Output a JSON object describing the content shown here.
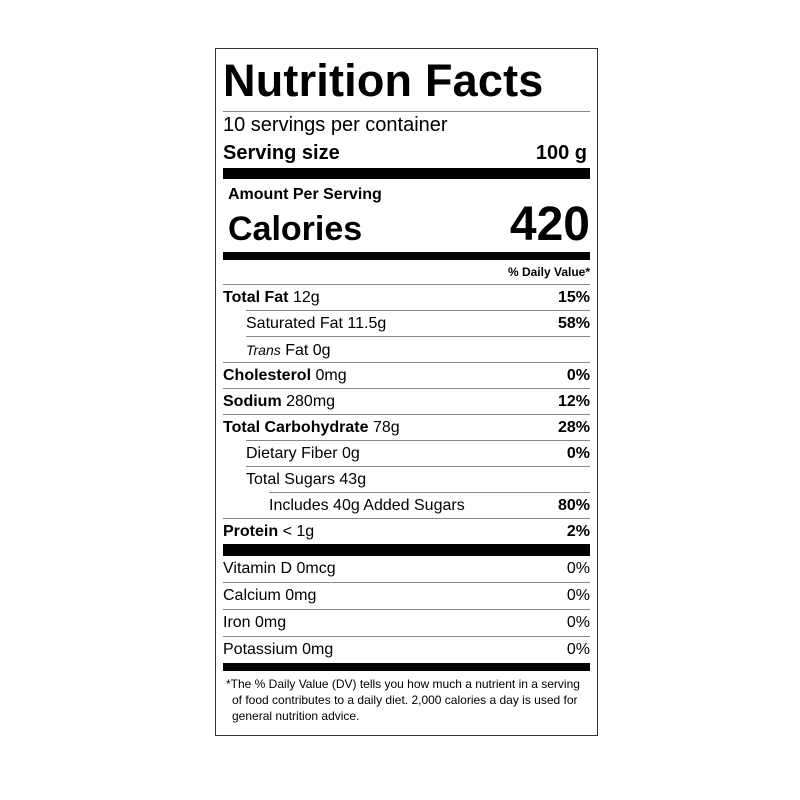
{
  "label": {
    "title": "Nutrition Facts",
    "servings_per_container": "10 servings per container",
    "serving_size_label": "Serving size",
    "serving_size_value": "100 g",
    "amount_per_serving": "Amount Per Serving",
    "calories_label": "Calories",
    "calories_value": "420",
    "daily_value_header": "% Daily Value*",
    "nutrients": [
      {
        "name": "Total Fat",
        "amount": "12g",
        "dv": "15%"
      },
      {
        "name": "Saturated Fat",
        "amount": "11.5g",
        "dv": "58%"
      },
      {
        "name_italic": "Trans",
        "name": "Fat",
        "amount": "0g",
        "dv": ""
      },
      {
        "name": "Cholesterol",
        "amount": "0mg",
        "dv": "0%"
      },
      {
        "name": "Sodium",
        "amount": "280mg",
        "dv": "12%"
      },
      {
        "name": "Total Carbohydrate",
        "amount": "78g",
        "dv": "28%"
      },
      {
        "name": "Dietary Fiber",
        "amount": "0g",
        "dv": "0%"
      },
      {
        "name": "Total Sugars",
        "amount": "43g",
        "dv": ""
      },
      {
        "name": "Includes 40g Added Sugars",
        "amount": "",
        "dv": "80%"
      },
      {
        "name": "Protein",
        "amount": "< 1g",
        "dv": "2%"
      }
    ],
    "vitamins": [
      {
        "name": "Vitamin D 0mcg",
        "dv": "0%"
      },
      {
        "name": "Calcium 0mg",
        "dv": "0%"
      },
      {
        "name": "Iron 0mg",
        "dv": "0%"
      },
      {
        "name": "Potassium 0mg",
        "dv": "0%"
      }
    ],
    "footnote": "*The % Daily Value (DV) tells you how much a nutrient in a serving of food contributes to a daily diet. 2,000 calories a day is used for general nutrition advice."
  }
}
